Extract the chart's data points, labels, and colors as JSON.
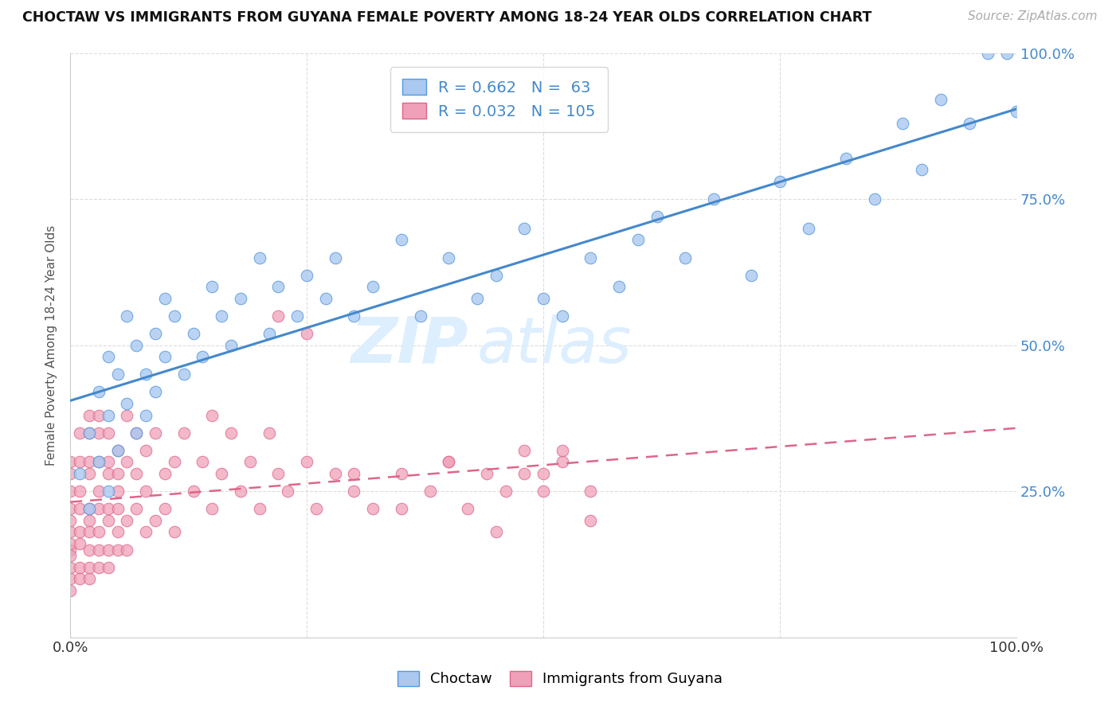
{
  "title": "CHOCTAW VS IMMIGRANTS FROM GUYANA FEMALE POVERTY AMONG 18-24 YEAR OLDS CORRELATION CHART",
  "source": "Source: ZipAtlas.com",
  "ylabel": "Female Poverty Among 18-24 Year Olds",
  "xmin": 0.0,
  "xmax": 1.0,
  "ymin": 0.0,
  "ymax": 1.0,
  "choctaw_R": 0.662,
  "choctaw_N": 63,
  "guyana_R": 0.032,
  "guyana_N": 105,
  "choctaw_color": "#aac8f0",
  "choctaw_edge_color": "#5599dd",
  "choctaw_line_color": "#4488cc",
  "guyana_color": "#f0a0b8",
  "guyana_edge_color": "#dd6688",
  "guyana_line_color": "#dd6688",
  "background_color": "#ffffff",
  "grid_color": "#dddddd",
  "watermark_color": "#ddeeff",
  "legend_label_color": "#4488cc",
  "right_axis_color": "#4488cc",
  "choctaw_x": [
    0.01,
    0.02,
    0.02,
    0.03,
    0.03,
    0.04,
    0.04,
    0.04,
    0.05,
    0.05,
    0.06,
    0.06,
    0.07,
    0.07,
    0.08,
    0.08,
    0.09,
    0.09,
    0.1,
    0.1,
    0.11,
    0.12,
    0.13,
    0.14,
    0.15,
    0.16,
    0.17,
    0.18,
    0.2,
    0.21,
    0.22,
    0.24,
    0.25,
    0.27,
    0.28,
    0.3,
    0.32,
    0.35,
    0.37,
    0.4,
    0.43,
    0.45,
    0.48,
    0.5,
    0.52,
    0.55,
    0.58,
    0.6,
    0.62,
    0.65,
    0.68,
    0.72,
    0.75,
    0.78,
    0.82,
    0.85,
    0.88,
    0.9,
    0.92,
    0.95,
    0.97,
    0.99,
    1.0
  ],
  "choctaw_y": [
    0.28,
    0.22,
    0.35,
    0.3,
    0.42,
    0.25,
    0.38,
    0.48,
    0.32,
    0.45,
    0.4,
    0.55,
    0.35,
    0.5,
    0.45,
    0.38,
    0.52,
    0.42,
    0.48,
    0.58,
    0.55,
    0.45,
    0.52,
    0.48,
    0.6,
    0.55,
    0.5,
    0.58,
    0.65,
    0.52,
    0.6,
    0.55,
    0.62,
    0.58,
    0.65,
    0.55,
    0.6,
    0.68,
    0.55,
    0.65,
    0.58,
    0.62,
    0.7,
    0.58,
    0.55,
    0.65,
    0.6,
    0.68,
    0.72,
    0.65,
    0.75,
    0.62,
    0.78,
    0.7,
    0.82,
    0.75,
    0.88,
    0.8,
    0.92,
    0.88,
    1.0,
    1.0,
    0.9
  ],
  "guyana_x": [
    0.0,
    0.0,
    0.0,
    0.0,
    0.0,
    0.0,
    0.0,
    0.0,
    0.0,
    0.0,
    0.0,
    0.0,
    0.01,
    0.01,
    0.01,
    0.01,
    0.01,
    0.01,
    0.01,
    0.01,
    0.02,
    0.02,
    0.02,
    0.02,
    0.02,
    0.02,
    0.02,
    0.02,
    0.02,
    0.02,
    0.03,
    0.03,
    0.03,
    0.03,
    0.03,
    0.03,
    0.03,
    0.03,
    0.04,
    0.04,
    0.04,
    0.04,
    0.04,
    0.04,
    0.04,
    0.05,
    0.05,
    0.05,
    0.05,
    0.05,
    0.05,
    0.06,
    0.06,
    0.06,
    0.06,
    0.07,
    0.07,
    0.07,
    0.08,
    0.08,
    0.08,
    0.09,
    0.09,
    0.1,
    0.1,
    0.11,
    0.11,
    0.12,
    0.13,
    0.14,
    0.15,
    0.15,
    0.16,
    0.17,
    0.18,
    0.19,
    0.2,
    0.21,
    0.22,
    0.23,
    0.25,
    0.26,
    0.28,
    0.3,
    0.32,
    0.35,
    0.38,
    0.4,
    0.42,
    0.44,
    0.46,
    0.48,
    0.5,
    0.52,
    0.55,
    0.22,
    0.25,
    0.3,
    0.35,
    0.4,
    0.45,
    0.48,
    0.5,
    0.52,
    0.55
  ],
  "guyana_y": [
    0.12,
    0.18,
    0.22,
    0.15,
    0.25,
    0.1,
    0.2,
    0.28,
    0.16,
    0.3,
    0.08,
    0.14,
    0.18,
    0.25,
    0.12,
    0.3,
    0.22,
    0.16,
    0.35,
    0.1,
    0.2,
    0.28,
    0.15,
    0.35,
    0.1,
    0.22,
    0.3,
    0.18,
    0.38,
    0.12,
    0.22,
    0.3,
    0.15,
    0.38,
    0.18,
    0.25,
    0.12,
    0.35,
    0.2,
    0.28,
    0.15,
    0.35,
    0.22,
    0.3,
    0.12,
    0.25,
    0.18,
    0.32,
    0.15,
    0.28,
    0.22,
    0.3,
    0.2,
    0.38,
    0.15,
    0.28,
    0.22,
    0.35,
    0.25,
    0.18,
    0.32,
    0.2,
    0.35,
    0.28,
    0.22,
    0.3,
    0.18,
    0.35,
    0.25,
    0.3,
    0.22,
    0.38,
    0.28,
    0.35,
    0.25,
    0.3,
    0.22,
    0.35,
    0.28,
    0.25,
    0.3,
    0.22,
    0.28,
    0.25,
    0.22,
    0.28,
    0.25,
    0.3,
    0.22,
    0.28,
    0.25,
    0.32,
    0.28,
    0.3,
    0.25,
    0.55,
    0.52,
    0.28,
    0.22,
    0.3,
    0.18,
    0.28,
    0.25,
    0.32,
    0.2
  ]
}
